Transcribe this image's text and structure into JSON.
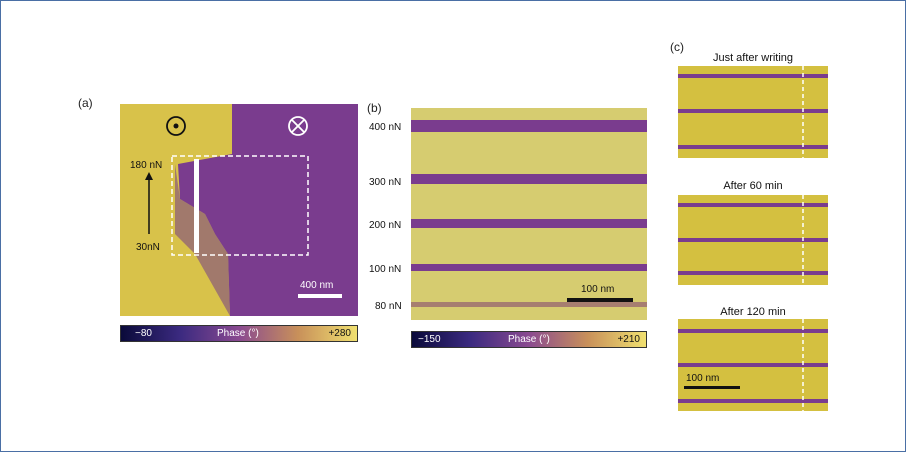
{
  "panel_a": {
    "label": "(a)",
    "force_top": "180 nN",
    "force_bottom": "30nN",
    "scale_bar": "400 nm",
    "colorbar": {
      "min": "−80",
      "title": "Phase (°)",
      "max": "+280"
    },
    "symbol_left": "out-of-plane-dot-icon",
    "symbol_right": "into-plane-cross-icon"
  },
  "panel_b": {
    "label": "(b)",
    "forces": [
      "400 nN",
      "300 nN",
      "200 nN",
      "100 nN",
      "80 nN"
    ],
    "scale_bar": "100 nm",
    "colorbar": {
      "min": "−150",
      "title": "Phase (°)",
      "max": "+210"
    }
  },
  "panel_c": {
    "label": "(c)",
    "titles": [
      "Just after writing",
      "After 60 min",
      "After 120 min"
    ],
    "scale_bar": "100 nm"
  },
  "colors": {
    "yellow": "#d8c24a",
    "purple": "#7a3c8e",
    "frame": "#4a6fa5"
  }
}
